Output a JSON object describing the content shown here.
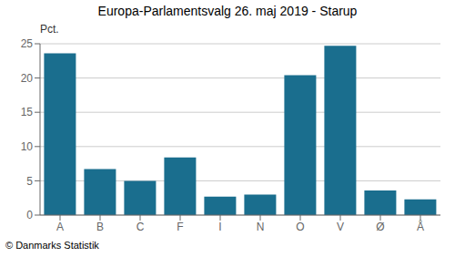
{
  "chart_data": {
    "type": "bar",
    "title": "Europa-Parlamentsvalg 26. maj 2019 - Starup",
    "categories": [
      "A",
      "B",
      "C",
      "F",
      "I",
      "N",
      "O",
      "V",
      "Ø",
      "Å"
    ],
    "values": [
      23.6,
      6.7,
      5.0,
      8.4,
      2.7,
      3.0,
      20.4,
      24.7,
      3.6,
      2.3
    ],
    "color": "#1a6e8e",
    "ylabel": "Pct.",
    "ylim": [
      0,
      25
    ],
    "yticks": [
      0,
      5,
      10,
      15,
      20,
      25
    ],
    "grid": true,
    "footer": "© Danmarks Statistik"
  }
}
